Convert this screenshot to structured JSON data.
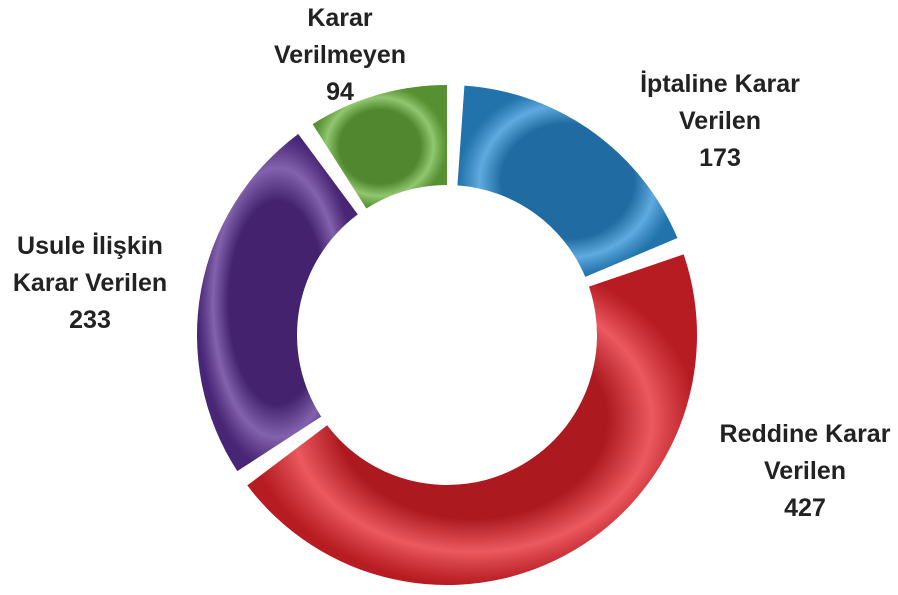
{
  "chart_data": {
    "type": "donut",
    "categories": [
      "İptaline Karar Verilen",
      "Reddine Karar Verilen",
      "Usule İlişkin Karar Verilen",
      "Karar Verilmeyen"
    ],
    "values": [
      173,
      427,
      233,
      94
    ],
    "colors": [
      "#2a8fd6",
      "#e5232b",
      "#5a2e92",
      "#6cb43f"
    ]
  }
}
